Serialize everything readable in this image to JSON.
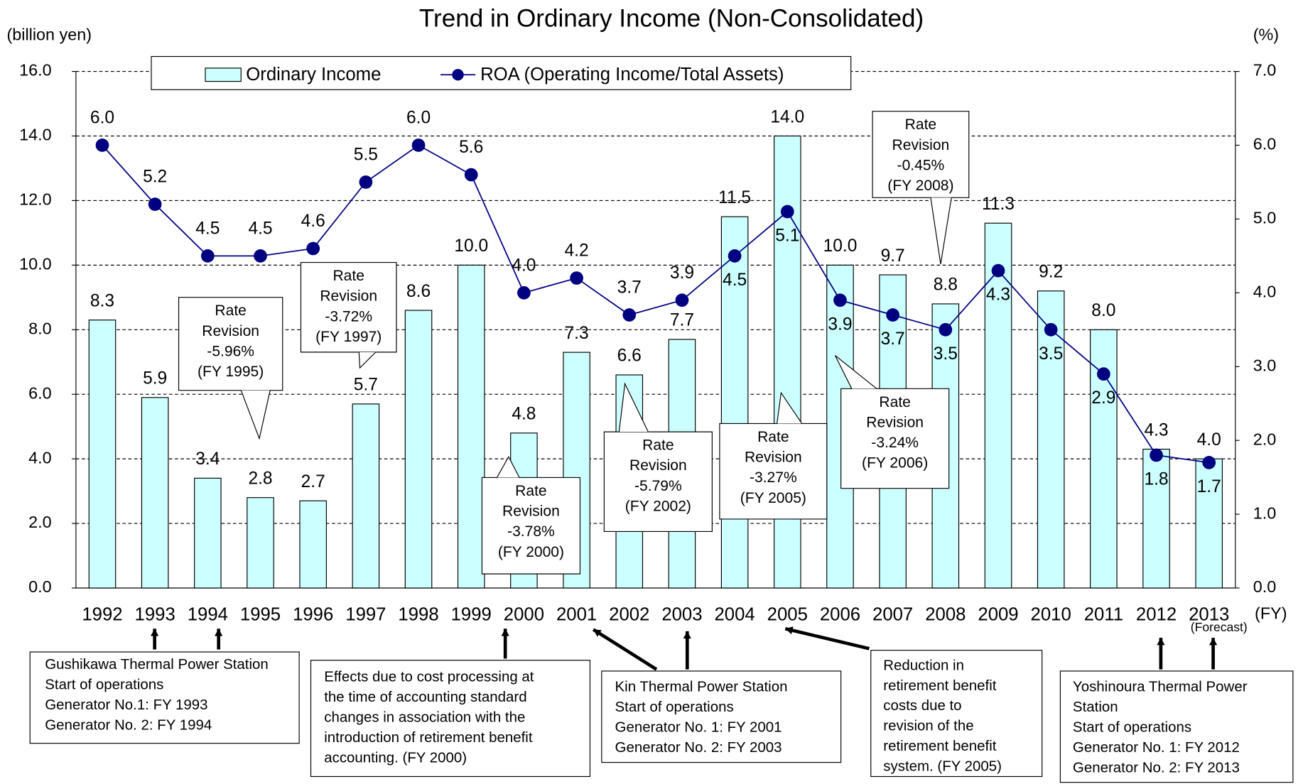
{
  "chart_data": {
    "type": "bar",
    "title": "Trend in Ordinary Income (Non-Consolidated)",
    "y_axis_label": "(billion yen)",
    "y2_axis_label": "(%)",
    "x_axis_label": "(FY)",
    "x_note": "(Forecast)",
    "categories": [
      "1992",
      "1993",
      "1994",
      "1995",
      "1996",
      "1997",
      "1998",
      "1999",
      "2000",
      "2001",
      "2002",
      "2003",
      "2004",
      "2005",
      "2006",
      "2007",
      "2008",
      "2009",
      "2010",
      "2011",
      "2012",
      "2013"
    ],
    "series": [
      {
        "name": "Ordinary Income",
        "type": "bar",
        "color": "#ccffff",
        "values": [
          8.3,
          5.9,
          3.4,
          2.8,
          2.7,
          5.7,
          8.6,
          10.0,
          4.8,
          7.3,
          6.6,
          7.7,
          11.5,
          14.0,
          10.0,
          9.7,
          8.8,
          11.3,
          9.2,
          8.0,
          4.3,
          4.0
        ],
        "value_labels": [
          "8.3",
          "5.9",
          "3.4",
          "2.8",
          "2.7",
          "5.7",
          "8.6",
          "10.0",
          "4.8",
          "7.3",
          "6.6",
          "7.7",
          "11.5",
          "14.0",
          "10.0",
          "9.7",
          "8.8",
          "11.3",
          "9.2",
          "8.0",
          "4.3",
          "4.0"
        ]
      },
      {
        "name": "ROA (Operating Income/Total Assets)",
        "type": "line",
        "axis": "y2",
        "color": "#000080",
        "values": [
          6.0,
          5.2,
          4.5,
          4.5,
          4.6,
          5.5,
          6.0,
          5.6,
          4.0,
          4.2,
          3.7,
          3.9,
          4.5,
          5.1,
          3.9,
          3.7,
          3.5,
          4.3,
          3.5,
          2.9,
          1.8,
          1.7
        ],
        "value_labels": [
          "6.0",
          "5.2",
          "4.5",
          "4.5",
          "4.6",
          "5.5",
          "6.0",
          "5.6",
          "4.0",
          "4.2",
          "3.7",
          "3.9",
          "4.5",
          "5.1",
          "3.9",
          "3.7",
          "3.5",
          "4.3",
          "3.5",
          "2.9",
          "1.8",
          "1.7"
        ]
      }
    ],
    "ylim": [
      0,
      16
    ],
    "yticks": [
      {
        "value": 0,
        "label": "0.0"
      },
      {
        "value": 2,
        "label": "2.0"
      },
      {
        "value": 4,
        "label": "4.0"
      },
      {
        "value": 6,
        "label": "6.0"
      },
      {
        "value": 8,
        "label": "8.0"
      },
      {
        "value": 10,
        "label": "10.0"
      },
      {
        "value": 12,
        "label": "12.0"
      },
      {
        "value": 14,
        "label": "14.0"
      },
      {
        "value": 16,
        "label": "16.0"
      }
    ],
    "y2lim": [
      0,
      7
    ],
    "y2ticks": [
      {
        "value": 0,
        "label": "0.0"
      },
      {
        "value": 1,
        "label": "1.0"
      },
      {
        "value": 2,
        "label": "2.0"
      },
      {
        "value": 3,
        "label": "3.0"
      },
      {
        "value": 4,
        "label": "4.0"
      },
      {
        "value": 5,
        "label": "5.0"
      },
      {
        "value": 6,
        "label": "6.0"
      },
      {
        "value": 7,
        "label": "7.0"
      }
    ],
    "grid": true,
    "legend": "top",
    "annotations": [
      {
        "lines": [
          "Rate",
          "Revision",
          "-5.96%",
          "(FY 1995)"
        ]
      },
      {
        "lines": [
          "Rate",
          "Revision",
          "-3.72%",
          "(FY 1997)"
        ]
      },
      {
        "lines": [
          "Rate",
          "Revision",
          "-3.78%",
          "(FY 2000)"
        ]
      },
      {
        "lines": [
          "Rate",
          "Revision",
          "-5.79%",
          "(FY 2002)"
        ]
      },
      {
        "lines": [
          "Rate",
          "Revision",
          "-3.27%",
          "(FY 2005)"
        ]
      },
      {
        "lines": [
          "Rate",
          "Revision",
          "-3.24%",
          "(FY 2006)"
        ]
      },
      {
        "lines": [
          "Rate",
          "Revision",
          "-0.45%",
          "(FY 2008)"
        ]
      }
    ],
    "notes": [
      {
        "lines": [
          "Gushikawa Thermal Power Station",
          "Start of operations",
          "Generator No.1: FY 1993",
          "Generator No. 2: FY 1994"
        ]
      },
      {
        "lines": [
          "Effects due to cost processing at",
          "the time of accounting standard",
          "changes in association with the",
          "introduction of retirement benefit",
          "accounting. (FY 2000)"
        ]
      },
      {
        "lines": [
          "Kin Thermal Power Station",
          "Start of operations",
          "Generator No. 1: FY 2001",
          "Generator No. 2: FY 2003"
        ]
      },
      {
        "lines": [
          "Reduction in",
          "retirement benefit",
          "costs due to",
          "revision of the",
          "retirement benefit",
          "system. (FY 2005)"
        ]
      },
      {
        "lines": [
          "Yoshinoura Thermal Power",
          "Station",
          "Start of operations",
          "Generator No. 1: FY 2012",
          "Generator No. 2: FY 2013"
        ]
      }
    ]
  }
}
